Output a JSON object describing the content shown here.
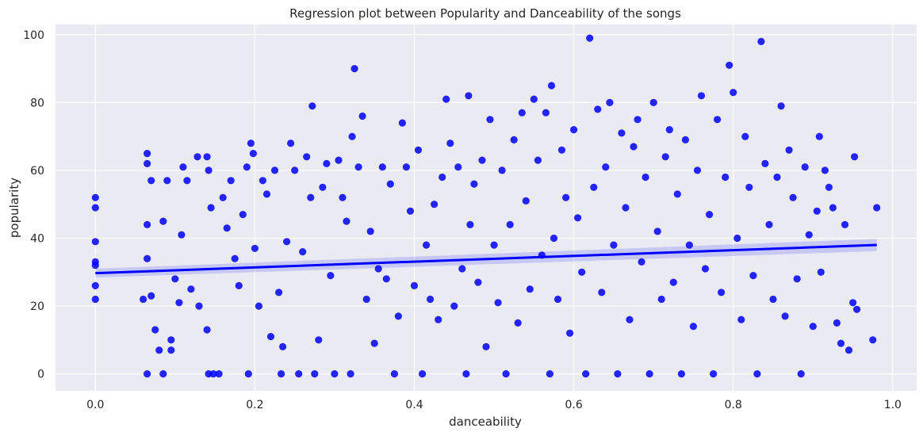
{
  "chart_data": {
    "type": "scatter",
    "title": "Regression plot between Popularity and Danceability of the songs",
    "xlabel": "danceability",
    "ylabel": "popularity",
    "xlim": [
      -0.05,
      1.03
    ],
    "ylim": [
      -5,
      103
    ],
    "xticks": [
      "0.0",
      "0.2",
      "0.4",
      "0.6",
      "0.8",
      "1.0"
    ],
    "yticks": [
      "0",
      "20",
      "40",
      "60",
      "80",
      "100"
    ],
    "grid": true,
    "background": "#eaeaf2",
    "point_color": "#0000ff",
    "regression": {
      "x": [
        0.0,
        0.98
      ],
      "y": [
        29.7,
        38.0
      ],
      "ci_lower": [
        28.4,
        36.2
      ],
      "ci_upper": [
        31.0,
        39.8
      ],
      "color": "#0000ff"
    },
    "points": [
      [
        0.0,
        52
      ],
      [
        0.0,
        49
      ],
      [
        0.0,
        39
      ],
      [
        0.0,
        33
      ],
      [
        0.0,
        32
      ],
      [
        0.0,
        26
      ],
      [
        0.0,
        22
      ],
      [
        0.065,
        65
      ],
      [
        0.065,
        62
      ],
      [
        0.07,
        57
      ],
      [
        0.065,
        44
      ],
      [
        0.065,
        34
      ],
      [
        0.06,
        22
      ],
      [
        0.07,
        23
      ],
      [
        0.075,
        13
      ],
      [
        0.065,
        0
      ],
      [
        0.085,
        0
      ],
      [
        0.09,
        57
      ],
      [
        0.085,
        45
      ],
      [
        0.095,
        10
      ],
      [
        0.095,
        7
      ],
      [
        0.08,
        7
      ],
      [
        0.1,
        28
      ],
      [
        0.105,
        21
      ],
      [
        0.11,
        61
      ],
      [
        0.115,
        57
      ],
      [
        0.108,
        41
      ],
      [
        0.12,
        25
      ],
      [
        0.128,
        64
      ],
      [
        0.13,
        20
      ],
      [
        0.14,
        64
      ],
      [
        0.142,
        60
      ],
      [
        0.145,
        49
      ],
      [
        0.14,
        13
      ],
      [
        0.142,
        0
      ],
      [
        0.148,
        0
      ],
      [
        0.155,
        0
      ],
      [
        0.16,
        52
      ],
      [
        0.165,
        43
      ],
      [
        0.17,
        57
      ],
      [
        0.175,
        34
      ],
      [
        0.18,
        26
      ],
      [
        0.185,
        47
      ],
      [
        0.19,
        61
      ],
      [
        0.192,
        0
      ],
      [
        0.195,
        68
      ],
      [
        0.198,
        65
      ],
      [
        0.2,
        37
      ],
      [
        0.205,
        20
      ],
      [
        0.21,
        57
      ],
      [
        0.215,
        53
      ],
      [
        0.22,
        11
      ],
      [
        0.225,
        60
      ],
      [
        0.23,
        24
      ],
      [
        0.233,
        0
      ],
      [
        0.235,
        8
      ],
      [
        0.24,
        39
      ],
      [
        0.245,
        68
      ],
      [
        0.25,
        60
      ],
      [
        0.255,
        0
      ],
      [
        0.26,
        36
      ],
      [
        0.265,
        64
      ],
      [
        0.27,
        52
      ],
      [
        0.272,
        79
      ],
      [
        0.275,
        0
      ],
      [
        0.28,
        10
      ],
      [
        0.285,
        55
      ],
      [
        0.29,
        62
      ],
      [
        0.295,
        29
      ],
      [
        0.3,
        0
      ],
      [
        0.305,
        63
      ],
      [
        0.31,
        52
      ],
      [
        0.315,
        45
      ],
      [
        0.32,
        0
      ],
      [
        0.322,
        70
      ],
      [
        0.325,
        90
      ],
      [
        0.33,
        61
      ],
      [
        0.335,
        76
      ],
      [
        0.34,
        22
      ],
      [
        0.345,
        42
      ],
      [
        0.35,
        9
      ],
      [
        0.355,
        31
      ],
      [
        0.36,
        61
      ],
      [
        0.365,
        28
      ],
      [
        0.37,
        56
      ],
      [
        0.375,
        0
      ],
      [
        0.38,
        17
      ],
      [
        0.385,
        74
      ],
      [
        0.39,
        61
      ],
      [
        0.395,
        48
      ],
      [
        0.4,
        26
      ],
      [
        0.405,
        66
      ],
      [
        0.41,
        0
      ],
      [
        0.415,
        38
      ],
      [
        0.42,
        22
      ],
      [
        0.425,
        50
      ],
      [
        0.43,
        16
      ],
      [
        0.435,
        58
      ],
      [
        0.44,
        81
      ],
      [
        0.445,
        68
      ],
      [
        0.45,
        20
      ],
      [
        0.455,
        61
      ],
      [
        0.46,
        31
      ],
      [
        0.465,
        0
      ],
      [
        0.468,
        82
      ],
      [
        0.47,
        44
      ],
      [
        0.475,
        56
      ],
      [
        0.48,
        27
      ],
      [
        0.485,
        63
      ],
      [
        0.49,
        8
      ],
      [
        0.495,
        75
      ],
      [
        0.5,
        38
      ],
      [
        0.505,
        21
      ],
      [
        0.51,
        60
      ],
      [
        0.515,
        0
      ],
      [
        0.52,
        44
      ],
      [
        0.525,
        69
      ],
      [
        0.53,
        15
      ],
      [
        0.535,
        77
      ],
      [
        0.54,
        51
      ],
      [
        0.545,
        25
      ],
      [
        0.55,
        81
      ],
      [
        0.555,
        63
      ],
      [
        0.56,
        35
      ],
      [
        0.565,
        77
      ],
      [
        0.57,
        0
      ],
      [
        0.572,
        85
      ],
      [
        0.575,
        40
      ],
      [
        0.58,
        22
      ],
      [
        0.585,
        66
      ],
      [
        0.59,
        52
      ],
      [
        0.595,
        12
      ],
      [
        0.6,
        72
      ],
      [
        0.605,
        46
      ],
      [
        0.61,
        30
      ],
      [
        0.615,
        0
      ],
      [
        0.62,
        99
      ],
      [
        0.625,
        55
      ],
      [
        0.63,
        78
      ],
      [
        0.635,
        24
      ],
      [
        0.64,
        61
      ],
      [
        0.645,
        80
      ],
      [
        0.65,
        38
      ],
      [
        0.655,
        0
      ],
      [
        0.66,
        71
      ],
      [
        0.665,
        49
      ],
      [
        0.67,
        16
      ],
      [
        0.675,
        67
      ],
      [
        0.68,
        75
      ],
      [
        0.685,
        33
      ],
      [
        0.69,
        58
      ],
      [
        0.695,
        0
      ],
      [
        0.7,
        80
      ],
      [
        0.705,
        42
      ],
      [
        0.71,
        22
      ],
      [
        0.715,
        64
      ],
      [
        0.72,
        72
      ],
      [
        0.725,
        27
      ],
      [
        0.73,
        53
      ],
      [
        0.735,
        0
      ],
      [
        0.74,
        69
      ],
      [
        0.745,
        38
      ],
      [
        0.75,
        14
      ],
      [
        0.755,
        60
      ],
      [
        0.76,
        82
      ],
      [
        0.765,
        31
      ],
      [
        0.77,
        47
      ],
      [
        0.775,
        0
      ],
      [
        0.78,
        75
      ],
      [
        0.785,
        24
      ],
      [
        0.79,
        58
      ],
      [
        0.795,
        91
      ],
      [
        0.8,
        83
      ],
      [
        0.805,
        40
      ],
      [
        0.81,
        16
      ],
      [
        0.815,
        70
      ],
      [
        0.82,
        55
      ],
      [
        0.825,
        29
      ],
      [
        0.83,
        0
      ],
      [
        0.835,
        98
      ],
      [
        0.84,
        62
      ],
      [
        0.845,
        44
      ],
      [
        0.85,
        22
      ],
      [
        0.855,
        58
      ],
      [
        0.86,
        79
      ],
      [
        0.865,
        17
      ],
      [
        0.87,
        66
      ],
      [
        0.875,
        52
      ],
      [
        0.88,
        28
      ],
      [
        0.885,
        0
      ],
      [
        0.89,
        61
      ],
      [
        0.895,
        41
      ],
      [
        0.9,
        14
      ],
      [
        0.905,
        48
      ],
      [
        0.908,
        70
      ],
      [
        0.91,
        30
      ],
      [
        0.915,
        60
      ],
      [
        0.92,
        55
      ],
      [
        0.925,
        49
      ],
      [
        0.93,
        15
      ],
      [
        0.935,
        9
      ],
      [
        0.94,
        44
      ],
      [
        0.945,
        7
      ],
      [
        0.95,
        21
      ],
      [
        0.952,
        64
      ],
      [
        0.955,
        19
      ],
      [
        0.975,
        10
      ],
      [
        0.98,
        49
      ]
    ]
  }
}
